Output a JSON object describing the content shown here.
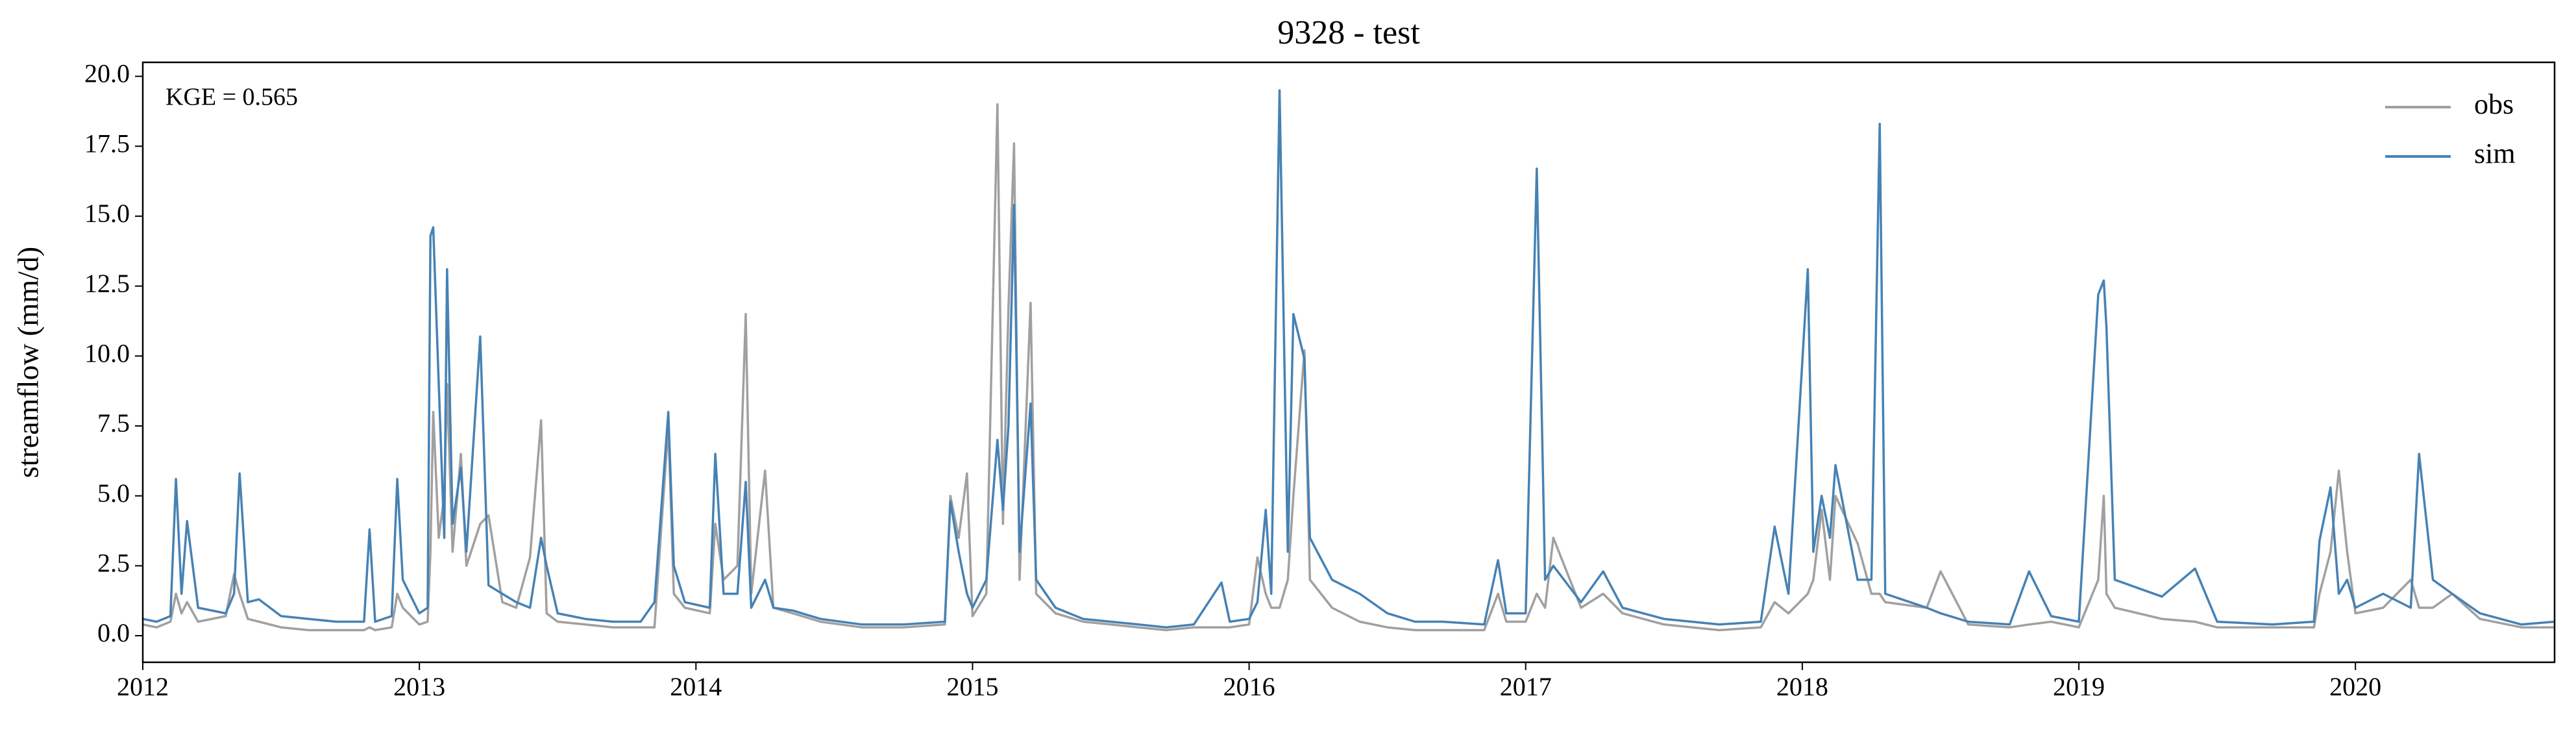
{
  "chart_data": {
    "type": "line",
    "title": "9328 - test",
    "ylabel": "streamflow (mm/d)",
    "annotation": "KGE = 0.565",
    "legend": "upper right",
    "xlim": [
      2012,
      2020.72
    ],
    "xticks": [
      2012,
      2013,
      2014,
      2015,
      2016,
      2017,
      2018,
      2019,
      2020
    ],
    "ylim": [
      -0.95,
      20.5
    ],
    "yticks": [
      {
        "value": 0,
        "label": "0.0"
      },
      {
        "value": 2.5,
        "label": "2.5"
      },
      {
        "value": 5,
        "label": "5.0"
      },
      {
        "value": 7.5,
        "label": "7.5"
      },
      {
        "value": 10,
        "label": "10.0"
      },
      {
        "value": 12.5,
        "label": "12.5"
      },
      {
        "value": 15,
        "label": "15.0"
      },
      {
        "value": 17.5,
        "label": "17.5"
      },
      {
        "value": 20,
        "label": "20.0"
      }
    ],
    "x": [
      2012.0,
      2012.05,
      2012.1,
      2012.12,
      2012.14,
      2012.16,
      2012.2,
      2012.3,
      2012.33,
      2012.35,
      2012.38,
      2012.42,
      2012.5,
      2012.6,
      2012.7,
      2012.8,
      2012.82,
      2012.84,
      2012.9,
      2012.92,
      2012.94,
      2013.0,
      2013.03,
      2013.04,
      2013.05,
      2013.07,
      2013.09,
      2013.1,
      2013.12,
      2013.15,
      2013.17,
      2013.22,
      2013.25,
      2013.3,
      2013.35,
      2013.4,
      2013.44,
      2013.46,
      2013.5,
      2013.6,
      2013.7,
      2013.8,
      2013.85,
      2013.9,
      2013.92,
      2013.96,
      2014.05,
      2014.07,
      2014.1,
      2014.15,
      2014.18,
      2014.2,
      2014.25,
      2014.28,
      2014.35,
      2014.45,
      2014.6,
      2014.75,
      2014.9,
      2014.92,
      2014.95,
      2014.98,
      2015.0,
      2015.05,
      2015.09,
      2015.11,
      2015.13,
      2015.15,
      2015.17,
      2015.21,
      2015.23,
      2015.3,
      2015.4,
      2015.5,
      2015.6,
      2015.7,
      2015.8,
      2015.9,
      2015.93,
      2016.0,
      2016.03,
      2016.06,
      2016.08,
      2016.11,
      2016.14,
      2016.16,
      2016.2,
      2016.22,
      2016.3,
      2016.4,
      2016.5,
      2016.6,
      2016.7,
      2016.85,
      2016.9,
      2016.93,
      2017.0,
      2017.04,
      2017.07,
      2017.1,
      2017.2,
      2017.28,
      2017.35,
      2017.5,
      2017.7,
      2017.85,
      2017.9,
      2017.95,
      2018.02,
      2018.04,
      2018.07,
      2018.1,
      2018.12,
      2018.2,
      2018.25,
      2018.28,
      2018.3,
      2018.45,
      2018.5,
      2018.6,
      2018.75,
      2018.82,
      2018.9,
      2019.0,
      2019.07,
      2019.09,
      2019.1,
      2019.13,
      2019.3,
      2019.42,
      2019.5,
      2019.7,
      2019.85,
      2019.87,
      2019.91,
      2019.94,
      2019.97,
      2020.0,
      2020.1,
      2020.2,
      2020.23,
      2020.28,
      2020.35,
      2020.45,
      2020.6,
      2020.72
    ],
    "series": [
      {
        "name": "obs",
        "color": "#a0a0a0",
        "values": [
          0.4,
          0.3,
          0.5,
          1.5,
          0.8,
          1.2,
          0.5,
          0.7,
          2.2,
          1.5,
          0.6,
          0.5,
          0.3,
          0.2,
          0.2,
          0.2,
          0.3,
          0.2,
          0.3,
          1.5,
          1.0,
          0.4,
          0.5,
          3.0,
          8.0,
          3.5,
          5.0,
          9.0,
          3.0,
          6.5,
          2.5,
          4.0,
          4.3,
          1.2,
          1.0,
          2.8,
          7.7,
          0.8,
          0.5,
          0.4,
          0.3,
          0.3,
          0.3,
          7.5,
          1.5,
          1.0,
          0.8,
          4.0,
          2.0,
          2.5,
          11.5,
          1.5,
          5.9,
          1.0,
          0.8,
          0.5,
          0.3,
          0.3,
          0.4,
          5.0,
          3.5,
          5.8,
          0.7,
          1.5,
          19.0,
          4.0,
          11.7,
          17.6,
          2.0,
          11.9,
          1.5,
          0.8,
          0.5,
          0.4,
          0.3,
          0.2,
          0.3,
          0.3,
          0.3,
          0.4,
          2.8,
          1.5,
          1.0,
          1.0,
          2.0,
          5.0,
          10.2,
          2.0,
          1.0,
          0.5,
          0.3,
          0.2,
          0.2,
          0.2,
          1.5,
          0.5,
          0.5,
          1.5,
          1.0,
          3.5,
          1.0,
          1.5,
          0.8,
          0.4,
          0.2,
          0.3,
          1.2,
          0.8,
          1.5,
          2.0,
          4.5,
          2.0,
          5.0,
          3.3,
          1.5,
          1.5,
          1.2,
          1.0,
          2.3,
          0.4,
          0.3,
          0.4,
          0.5,
          0.3,
          2.0,
          5.0,
          1.5,
          1.0,
          0.6,
          0.5,
          0.3,
          0.3,
          0.3,
          1.5,
          3.0,
          5.9,
          3.0,
          0.8,
          1.0,
          2.0,
          1.0,
          1.0,
          1.5,
          0.6,
          0.3,
          0.3
        ]
      },
      {
        "name": "sim",
        "color": "#4682b4",
        "values": [
          0.6,
          0.5,
          0.7,
          5.6,
          1.5,
          4.1,
          1.0,
          0.8,
          1.5,
          5.8,
          1.2,
          1.3,
          0.7,
          0.6,
          0.5,
          0.5,
          3.8,
          0.5,
          0.7,
          5.6,
          2.0,
          0.8,
          1.0,
          14.3,
          14.6,
          9.0,
          3.5,
          13.1,
          4.0,
          6.0,
          3.0,
          10.7,
          1.8,
          1.5,
          1.2,
          1.0,
          3.5,
          2.5,
          0.8,
          0.6,
          0.5,
          0.5,
          1.2,
          8.0,
          2.5,
          1.2,
          1.0,
          6.5,
          1.5,
          1.5,
          5.5,
          1.0,
          2.0,
          1.0,
          0.9,
          0.6,
          0.4,
          0.4,
          0.5,
          4.8,
          3.0,
          1.5,
          1.0,
          2.0,
          7.0,
          4.5,
          7.5,
          15.4,
          3.0,
          8.3,
          2.0,
          1.0,
          0.6,
          0.5,
          0.4,
          0.3,
          0.4,
          1.9,
          0.5,
          0.6,
          1.2,
          4.5,
          1.5,
          19.5,
          3.0,
          11.5,
          9.9,
          3.5,
          2.0,
          1.5,
          0.8,
          0.5,
          0.5,
          0.4,
          2.7,
          0.8,
          0.8,
          16.7,
          2.0,
          2.5,
          1.2,
          2.3,
          1.0,
          0.6,
          0.4,
          0.5,
          3.9,
          1.5,
          13.1,
          3.0,
          5.0,
          3.5,
          6.1,
          2.0,
          2.0,
          18.3,
          1.5,
          1.0,
          0.8,
          0.5,
          0.4,
          2.3,
          0.7,
          0.5,
          12.2,
          12.7,
          11.0,
          2.0,
          1.4,
          2.4,
          0.5,
          0.4,
          0.5,
          3.4,
          5.3,
          1.5,
          2.0,
          1.0,
          1.5,
          1.0,
          6.5,
          2.0,
          1.5,
          0.8,
          0.4,
          0.5
        ]
      }
    ]
  }
}
